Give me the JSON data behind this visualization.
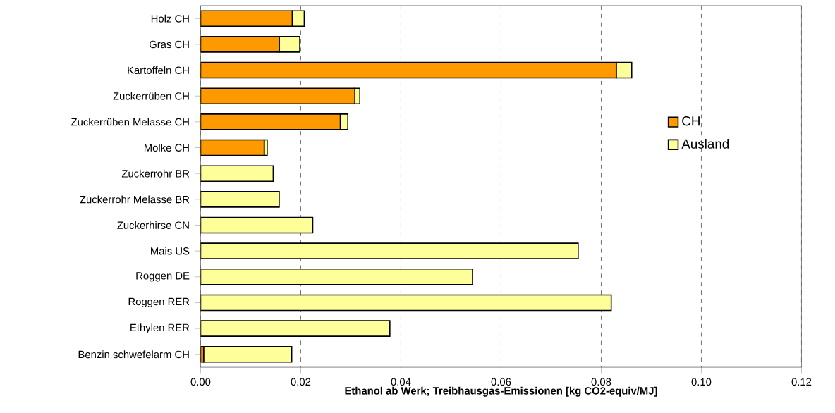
{
  "chart_data": {
    "type": "bar",
    "orientation": "horizontal",
    "stacked": true,
    "xlabel": "Ethanol ab Werk; Treibhausgas-Emissionen [kg CO2-equiv/MJ]",
    "categories": [
      "Holz CH",
      "Gras CH",
      "Kartoffeln CH",
      "Zuckerrüben CH",
      "Zuckerrüben Melasse CH",
      "Molke CH",
      "Zuckerrohr BR",
      "Zuckerrohr Melasse BR",
      "Zuckerhirse CN",
      "Mais US",
      "Roggen DE",
      "Roggen RER",
      "Ethylen RER",
      "Benzin schwefelarm CH"
    ],
    "series": [
      {
        "name": "CH",
        "color": "#ff9900",
        "values": [
          0.0183,
          0.0157,
          0.083,
          0.0308,
          0.0279,
          0.0127,
          null,
          null,
          null,
          null,
          null,
          null,
          null,
          0.0006
        ]
      },
      {
        "name": "Ausland",
        "color": "#ffff99",
        "values": [
          0.0024,
          0.0041,
          0.0031,
          0.001,
          0.0015,
          0.0006,
          0.0145,
          0.0157,
          0.0224,
          0.0754,
          0.0543,
          0.082,
          0.0378,
          0.0176
        ]
      }
    ],
    "xlim": [
      0,
      0.12
    ],
    "xticks": [
      {
        "value": 0,
        "label": "0.00"
      },
      {
        "value": 0.02,
        "label": "0.02"
      },
      {
        "value": 0.04,
        "label": "0.04"
      },
      {
        "value": 0.06,
        "label": "0.06"
      },
      {
        "value": 0.08,
        "label": "0.08"
      },
      {
        "value": 0.1,
        "label": "0.10"
      },
      {
        "value": 0.12,
        "label": "0.12"
      }
    ],
    "grid": "x",
    "legend": "right"
  }
}
